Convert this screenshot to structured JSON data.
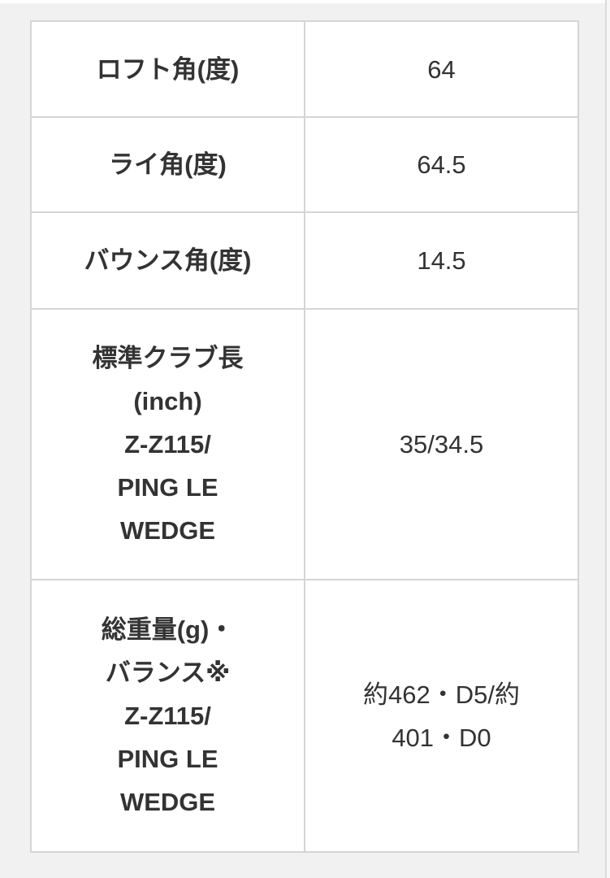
{
  "page": {
    "background_color": "#f1f1f1",
    "cell_background_color": "#ffffff",
    "border_color": "#d5d5d5",
    "text_color": "#333333"
  },
  "spec_table": {
    "rows": [
      {
        "label": "ロフト角(度)",
        "value": "64"
      },
      {
        "label": "ライ角(度)",
        "value": "64.5"
      },
      {
        "label": "バウンス角(度)",
        "value": "14.5"
      },
      {
        "label": "標準クラブ長\n(inch)\nZ-Z115/\nPING LE\nWEDGE",
        "value": "35/34.5"
      },
      {
        "label": "総重量(g)・\nバランス※\nZ-Z115/\nPING LE\nWEDGE",
        "value": "約462・D5/約\n401・D0"
      }
    ]
  }
}
